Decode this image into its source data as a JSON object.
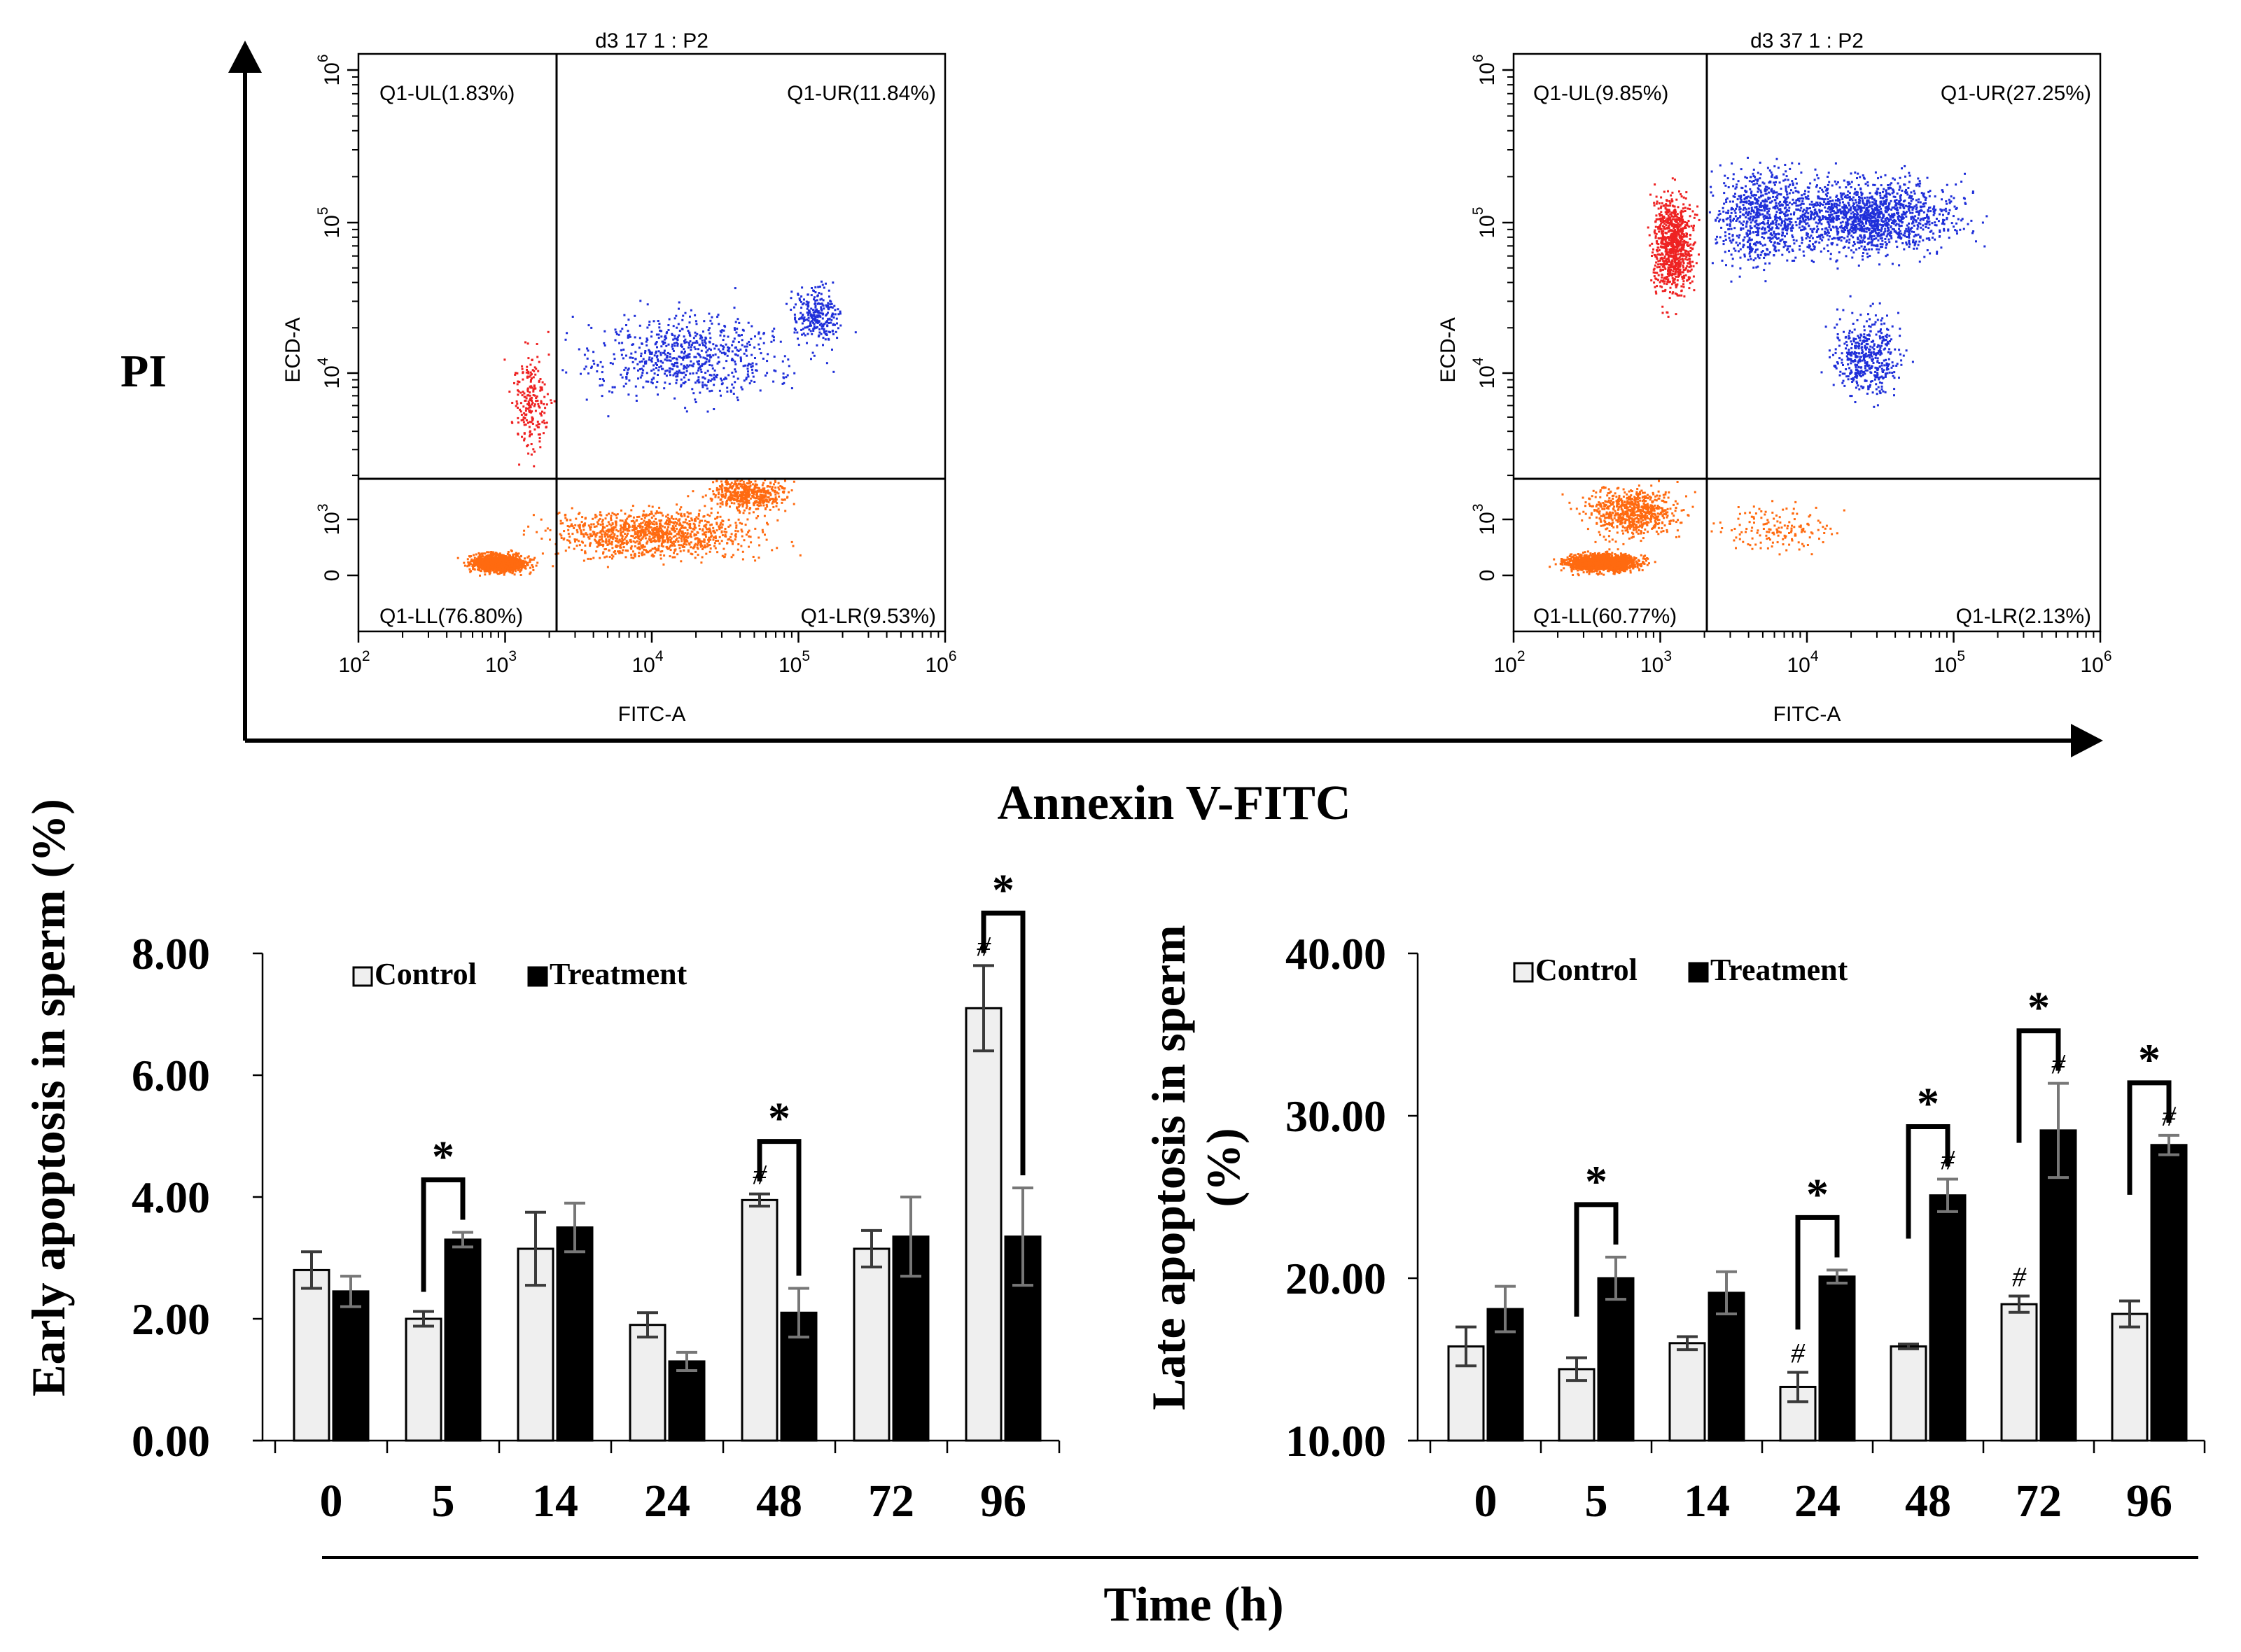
{
  "colors": {
    "ul_dots": "#ee2222",
    "ur_dots": "#1f2fd9",
    "ll_dots": "#ff6a10",
    "control_bar": "#efefef",
    "treatment_bar": "#000000"
  },
  "labels": {
    "pi": "PI",
    "annexin": "Annexin V-FITC",
    "time": "Time (h)"
  },
  "flow_plots": [
    {
      "title": "d3 17 1 : P2",
      "xlabel": "FITC-A",
      "ylabel": "ECD-A",
      "quadrants": {
        "ul": "Q1-UL(1.83%)",
        "ur": "Q1-UR(11.84%)",
        "ll": "Q1-LL(76.80%)",
        "lr": "Q1-LR(9.53%)"
      },
      "x_ticks": [
        {
          "base": "10",
          "exp": "2"
        },
        {
          "base": "10",
          "exp": "3"
        },
        {
          "base": "10",
          "exp": "4"
        },
        {
          "base": "10",
          "exp": "5"
        },
        {
          "base": "10",
          "exp": "6"
        }
      ],
      "y_ticks": [
        {
          "base": "0",
          "exp": ""
        },
        {
          "base": "10",
          "exp": "3"
        },
        {
          "base": "10",
          "exp": "4"
        },
        {
          "base": "10",
          "exp": "5"
        },
        {
          "base": "10",
          "exp": "6"
        }
      ]
    },
    {
      "title": "d3 37 1 : P2",
      "xlabel": "FITC-A",
      "ylabel": "ECD-A",
      "quadrants": {
        "ul": "Q1-UL(9.85%)",
        "ur": "Q1-UR(27.25%)",
        "ll": "Q1-LL(60.77%)",
        "lr": "Q1-LR(2.13%)"
      },
      "x_ticks": [
        {
          "base": "10",
          "exp": "2"
        },
        {
          "base": "10",
          "exp": "3"
        },
        {
          "base": "10",
          "exp": "4"
        },
        {
          "base": "10",
          "exp": "5"
        },
        {
          "base": "10",
          "exp": "6"
        }
      ],
      "y_ticks": [
        {
          "base": "0",
          "exp": ""
        },
        {
          "base": "10",
          "exp": "3"
        },
        {
          "base": "10",
          "exp": "4"
        },
        {
          "base": "10",
          "exp": "5"
        },
        {
          "base": "10",
          "exp": "6"
        }
      ]
    }
  ],
  "chart_data": [
    {
      "type": "bar",
      "ylabel": "Early apoptosis in sperm (%)",
      "xlabel": "Time (h)",
      "categories": [
        "0",
        "5",
        "14",
        "24",
        "48",
        "72",
        "96"
      ],
      "ylim": [
        0,
        8
      ],
      "yticks": [
        "0.00",
        "2.00",
        "4.00",
        "6.00",
        "8.00"
      ],
      "legend_position": "top-left",
      "series": [
        {
          "name": "Control",
          "values": [
            2.8,
            2.0,
            3.15,
            1.9,
            3.95,
            3.15,
            7.1
          ],
          "errors": [
            0.3,
            0.12,
            0.6,
            0.2,
            0.1,
            0.3,
            0.7
          ]
        },
        {
          "name": "Treatment",
          "values": [
            2.45,
            3.3,
            3.5,
            1.3,
            2.1,
            3.35,
            3.35
          ],
          "errors": [
            0.25,
            0.12,
            0.4,
            0.15,
            0.4,
            0.65,
            0.8
          ]
        }
      ],
      "hash_marks": [
        {
          "category": "48",
          "series": "Control",
          "text": "#"
        },
        {
          "category": "96",
          "series": "Control",
          "text": "#"
        }
      ],
      "significance": [
        {
          "category": "5",
          "text": "*"
        },
        {
          "category": "48",
          "text": "*"
        },
        {
          "category": "96",
          "text": "*"
        }
      ]
    },
    {
      "type": "bar",
      "ylabel_line1": "Late apoptosis in sperm",
      "ylabel_line2": "(%)",
      "xlabel": "Time (h)",
      "categories": [
        "0",
        "5",
        "14",
        "24",
        "48",
        "72",
        "96"
      ],
      "ylim": [
        10,
        40
      ],
      "yticks": [
        "10.00",
        "20.00",
        "30.00",
        "40.00"
      ],
      "legend_position": "top-left",
      "series": [
        {
          "name": "Control",
          "values": [
            15.8,
            14.4,
            16.0,
            13.3,
            15.8,
            18.4,
            17.8
          ],
          "errors": [
            1.2,
            0.7,
            0.4,
            0.9,
            0.15,
            0.5,
            0.8
          ]
        },
        {
          "name": "Treatment",
          "values": [
            18.1,
            20.0,
            19.1,
            20.1,
            25.1,
            29.1,
            28.2
          ],
          "errors": [
            1.4,
            1.3,
            1.3,
            0.4,
            1.0,
            2.9,
            0.6
          ]
        }
      ],
      "hash_marks": [
        {
          "category": "24",
          "series": "Control",
          "text": "#"
        },
        {
          "category": "72",
          "series": "Control",
          "text": "#"
        },
        {
          "category": "48",
          "series": "Treatment",
          "text": "#"
        },
        {
          "category": "72",
          "series": "Treatment",
          "text": "#"
        },
        {
          "category": "96",
          "series": "Treatment",
          "text": "#"
        }
      ],
      "significance": [
        {
          "category": "5",
          "text": "*"
        },
        {
          "category": "24",
          "text": "*"
        },
        {
          "category": "48",
          "text": "*"
        },
        {
          "category": "72",
          "text": "*"
        },
        {
          "category": "96",
          "text": "*"
        }
      ]
    }
  ]
}
